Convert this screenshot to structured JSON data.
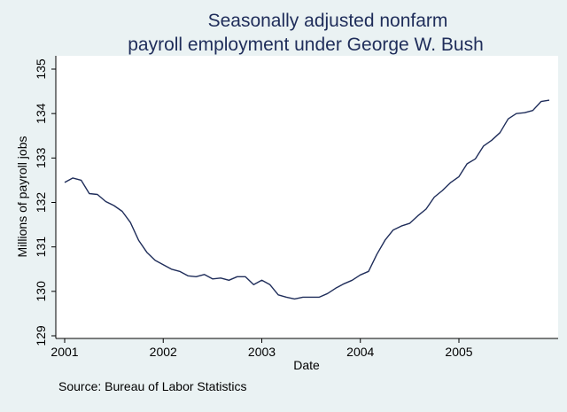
{
  "chart_data": {
    "type": "line",
    "title": [
      "Seasonally adjusted nonfarm",
      "payroll employment under George W. Bush"
    ],
    "xlabel": "Date",
    "ylabel": "Millions of payroll jobs",
    "note": "Source: Bureau of Labor Statistics",
    "xlim": [
      2001.0,
      2005.917
    ],
    "ylim": [
      129,
      135
    ],
    "x_ticks": [
      2001,
      2002,
      2003,
      2004,
      2005
    ],
    "x_tick_labels": [
      "2001",
      "2002",
      "2003",
      "2004",
      "2005"
    ],
    "y_ticks": [
      129,
      130,
      131,
      132,
      133,
      134,
      135
    ],
    "y_tick_labels": [
      "129",
      "130",
      "131",
      "132",
      "133",
      "134",
      "135"
    ],
    "grid": false,
    "colors": {
      "background": "#eaf2f3",
      "plot_background": "#ffffff",
      "line": "#1f2d5a",
      "title": "#1f2d5a"
    },
    "series": [
      {
        "x": [
          2001.0,
          2001.083,
          2001.167,
          2001.25,
          2001.333,
          2001.417,
          2001.5,
          2001.583,
          2001.667,
          2001.75,
          2001.833,
          2001.917,
          2002.0,
          2002.083,
          2002.167,
          2002.25,
          2002.333,
          2002.417,
          2002.5,
          2002.583,
          2002.667,
          2002.75,
          2002.833,
          2002.917,
          2003.0,
          2003.083,
          2003.167,
          2003.25,
          2003.333,
          2003.417,
          2003.5,
          2003.583,
          2003.667,
          2003.75,
          2003.833,
          2003.917,
          2004.0,
          2004.083,
          2004.167,
          2004.25,
          2004.333,
          2004.417,
          2004.5,
          2004.583,
          2004.667,
          2004.75,
          2004.833,
          2004.917,
          2005.0,
          2005.083,
          2005.167,
          2005.25,
          2005.333,
          2005.417,
          2005.5,
          2005.583,
          2005.667,
          2005.75,
          2005.833,
          2005.917
        ],
        "values": [
          132.45,
          132.55,
          132.5,
          132.2,
          132.18,
          132.02,
          131.93,
          131.8,
          131.55,
          131.15,
          130.88,
          130.7,
          130.6,
          130.5,
          130.45,
          130.35,
          130.33,
          130.38,
          130.28,
          130.3,
          130.25,
          130.33,
          130.33,
          130.15,
          130.25,
          130.15,
          129.92,
          129.87,
          129.83,
          129.87,
          129.87,
          129.87,
          129.95,
          130.07,
          130.17,
          130.25,
          130.37,
          130.45,
          130.83,
          131.15,
          131.38,
          131.47,
          131.53,
          131.7,
          131.85,
          132.12,
          132.27,
          132.45,
          132.58,
          132.87,
          132.98,
          133.27,
          133.4,
          133.57,
          133.88,
          134.0,
          134.02,
          134.07,
          134.27,
          134.3
        ]
      }
    ]
  }
}
